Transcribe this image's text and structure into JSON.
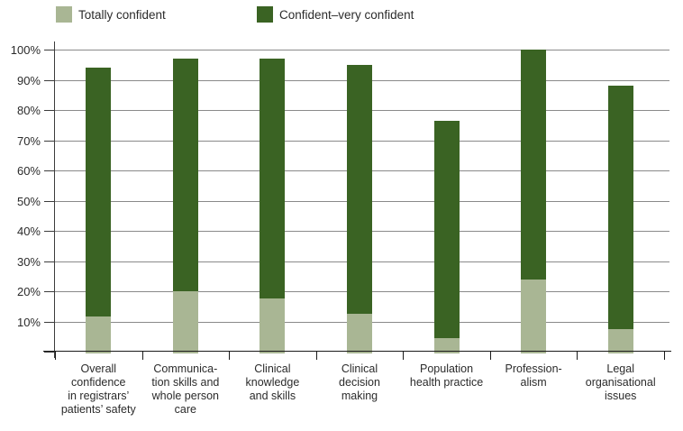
{
  "legend": {
    "items": [
      {
        "label": "Totally confident",
        "color": "#a9b694"
      },
      {
        "label": "Confident–very confident",
        "color": "#3a6323"
      }
    ]
  },
  "chart_data": {
    "type": "bar",
    "stacked": true,
    "title": "",
    "xlabel": "",
    "ylabel": "",
    "ylim": [
      0,
      100
    ],
    "ytick_step": 10,
    "ytick_labels": [
      "10%",
      "20%",
      "30%",
      "40%",
      "50%",
      "60%",
      "70%",
      "80%",
      "90%",
      "100%"
    ],
    "grid": true,
    "legend_position": "top",
    "categories": [
      "Overall confidence in registrars' patients' safety",
      "Communica-tion skills and whole person care",
      "Clinical knowledge and skills",
      "Clinical decision making",
      "Population health practice",
      "Profession-alism",
      "Legal organisational issues"
    ],
    "category_lines": [
      [
        "Overall",
        "confidence",
        "in registrars’",
        "patients’ safety"
      ],
      [
        "Communica-",
        "tion skills and",
        "whole person",
        "care"
      ],
      [
        "Clinical",
        "knowledge",
        "and skills"
      ],
      [
        "Clinical",
        "decision",
        "making"
      ],
      [
        "Population",
        "health practice"
      ],
      [
        "Profession-",
        "alism"
      ],
      [
        "Legal",
        "organisational",
        "issues"
      ]
    ],
    "series": [
      {
        "name": "Totally confident",
        "color": "#a9b694",
        "values": [
          11.5,
          20,
          17.5,
          12.5,
          4.5,
          24,
          7.5
        ]
      },
      {
        "name": "Confident–very confident",
        "color": "#3a6323",
        "values": [
          82.5,
          77,
          79.5,
          82.5,
          72,
          76,
          80.5
        ]
      }
    ],
    "stack_totals": [
      94,
      97,
      97,
      95,
      76.5,
      100,
      88
    ]
  },
  "colors": {
    "gridline": "#8a8a8a",
    "axis": "#1a1a1a",
    "text": "#2b2b2b",
    "background": "#ffffff"
  }
}
